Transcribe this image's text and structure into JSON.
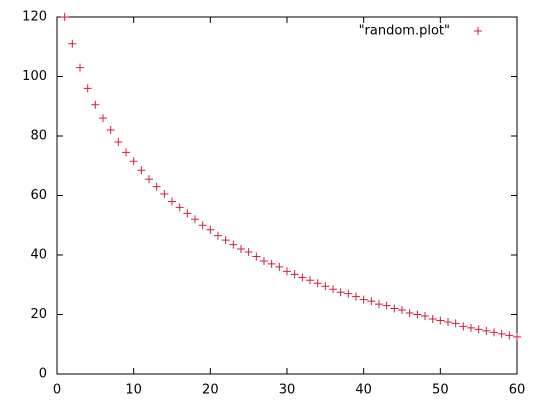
{
  "chart_data": {
    "type": "scatter",
    "x": [
      1,
      2,
      3,
      4,
      5,
      6,
      7,
      8,
      9,
      10,
      11,
      12,
      13,
      14,
      15,
      16,
      17,
      18,
      19,
      20,
      21,
      22,
      23,
      24,
      25,
      26,
      27,
      28,
      29,
      30,
      31,
      32,
      33,
      34,
      35,
      36,
      37,
      38,
      39,
      40,
      41,
      42,
      43,
      44,
      45,
      46,
      47,
      48,
      49,
      50,
      51,
      52,
      53,
      54,
      55,
      56,
      57,
      58,
      59,
      60
    ],
    "series": [
      {
        "name": "\"random.plot\"",
        "color": "#d0203a",
        "values": [
          120,
          111,
          103,
          96,
          90.5,
          86,
          82,
          78,
          74.5,
          71.5,
          68.5,
          65.5,
          63,
          60.5,
          58,
          56,
          54,
          52,
          50,
          48.5,
          46.5,
          45,
          43.5,
          42,
          41,
          39.5,
          38,
          37,
          36,
          34.5,
          33.5,
          32.5,
          31.5,
          30.5,
          29.5,
          28.5,
          27.5,
          27,
          26,
          25,
          24.5,
          23.5,
          23,
          22,
          21.5,
          20.5,
          20,
          19.5,
          18.5,
          18,
          17.5,
          17,
          16,
          15.5,
          15,
          14.5,
          14,
          13.5,
          13,
          12.5
        ]
      }
    ],
    "xlim": [
      0,
      60
    ],
    "xticks": [
      0,
      10,
      20,
      30,
      40,
      50,
      60
    ],
    "ylim": [
      0,
      120
    ],
    "yticks": [
      0,
      20,
      40,
      60,
      80,
      100,
      120
    ],
    "grid": false,
    "legend": "top-right"
  }
}
